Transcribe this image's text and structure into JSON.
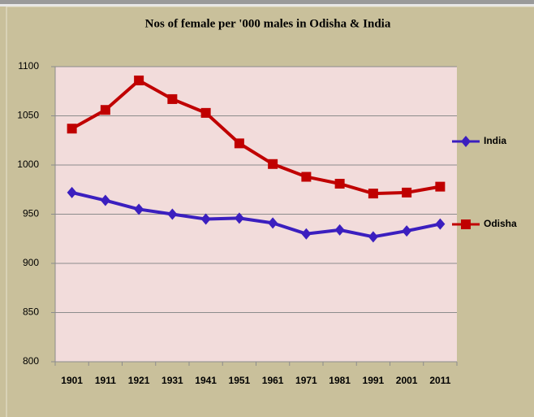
{
  "chart_data": {
    "type": "line",
    "title": "Nos of female per '000 males in Odisha & India",
    "categories": [
      "1901",
      "1911",
      "1921",
      "1931",
      "1941",
      "1951",
      "1961",
      "1971",
      "1981",
      "1991",
      "2001",
      "2011"
    ],
    "series": [
      {
        "name": "India",
        "color": "#3b1fbf",
        "marker": "diamond",
        "values": [
          972,
          964,
          955,
          950,
          945,
          946,
          941,
          930,
          934,
          927,
          933,
          940
        ]
      },
      {
        "name": "Odisha",
        "color": "#c00000",
        "marker": "square",
        "values": [
          1037,
          1056,
          1086,
          1067,
          1053,
          1022,
          1001,
          988,
          981,
          971,
          972,
          978
        ]
      }
    ],
    "ylim": [
      800,
      1100
    ],
    "yticks": [
      800,
      850,
      900,
      950,
      1000,
      1050,
      1100
    ],
    "grid": true,
    "legend": "right"
  }
}
